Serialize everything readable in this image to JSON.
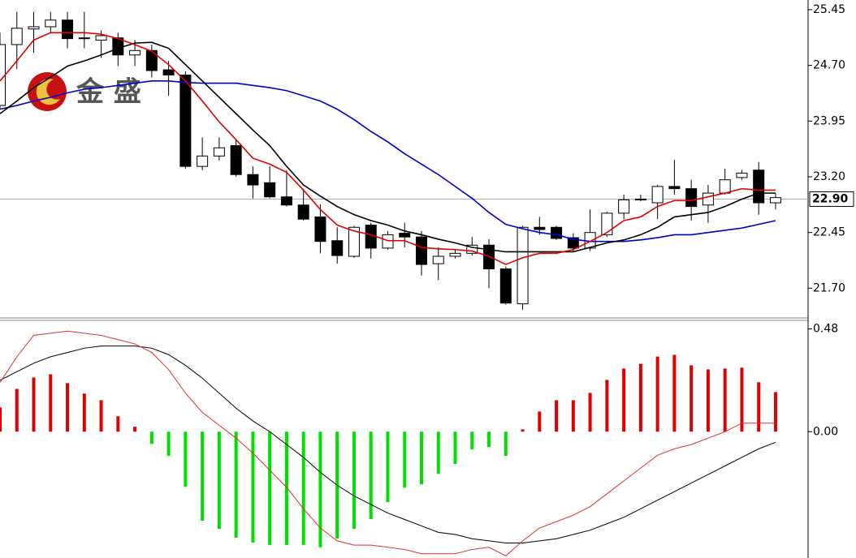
{
  "logo": "金 盛",
  "chart_data": [
    {
      "type": "candlestick",
      "ylim": [
        21.3,
        25.58
      ],
      "yticks": [
        25.45,
        {
          "value": 24.7,
          "label": "24.70"
        },
        23.95,
        {
          "value": 23.2,
          "label": "23.20"
        },
        22.45,
        {
          "value": 21.7,
          "label": "21.70"
        }
      ],
      "last_price": {
        "value": 22.9,
        "label": "22.90"
      },
      "up_color": "#ffffff",
      "down_color": "#000000",
      "open": [
        24.16,
        24.98,
        25.19,
        25.22,
        25.31,
        25.06,
        25.04,
        25.07,
        24.84,
        24.9,
        24.64,
        24.57,
        23.34,
        23.48,
        23.62,
        23.23,
        23.12,
        22.93,
        22.82,
        22.66,
        22.34,
        22.13,
        22.55,
        22.24,
        22.44,
        22.39,
        22.03,
        22.13,
        22.17,
        22.28,
        21.96,
        21.49,
        22.52,
        22.52,
        22.38,
        22.24,
        22.42,
        22.71,
        22.89,
        22.85,
        23.07,
        23.04,
        22.82,
        22.98,
        23.19,
        23.29,
        22.85
      ],
      "high": [
        25.14,
        25.42,
        25.42,
        25.42,
        25.42,
        25.42,
        25.17,
        25.14,
        25.04,
        24.98,
        24.76,
        24.62,
        23.73,
        23.73,
        23.7,
        23.34,
        23.34,
        23.29,
        23.04,
        22.83,
        22.52,
        22.54,
        22.58,
        22.47,
        22.58,
        22.47,
        22.25,
        22.21,
        22.39,
        22.36,
        21.99,
        22.54,
        22.66,
        22.54,
        22.44,
        22.76,
        22.73,
        22.96,
        22.96,
        23.09,
        23.43,
        23.16,
        23.09,
        23.31,
        23.29,
        23.4,
        22.98
      ],
      "low": [
        24.11,
        24.65,
        24.87,
        25.14,
        24.93,
        24.93,
        24.8,
        24.69,
        24.69,
        24.54,
        24.29,
        23.31,
        23.29,
        23.42,
        23.2,
        22.91,
        22.91,
        22.8,
        22.61,
        22.17,
        22.03,
        22.11,
        22.1,
        22.22,
        22.25,
        21.87,
        21.81,
        22.1,
        22.14,
        21.7,
        21.48,
        21.41,
        22.42,
        22.35,
        22.2,
        22.2,
        22.39,
        22.63,
        22.87,
        22.63,
        22.96,
        22.61,
        22.58,
        22.96,
        23.16,
        22.69,
        22.76
      ],
      "close": [
        24.98,
        25.2,
        25.22,
        25.31,
        25.06,
        25.07,
        25.1,
        24.84,
        24.9,
        24.63,
        24.57,
        23.34,
        23.48,
        23.59,
        23.23,
        23.09,
        22.93,
        22.82,
        22.63,
        22.33,
        22.14,
        22.52,
        22.24,
        22.42,
        22.39,
        22.02,
        22.13,
        22.17,
        22.28,
        21.96,
        21.5,
        22.52,
        22.49,
        22.37,
        22.24,
        22.45,
        22.71,
        22.89,
        22.9,
        23.07,
        23.04,
        22.8,
        22.98,
        23.16,
        23.25,
        22.85,
        22.92
      ],
      "series": [
        {
          "color": "#0000c8",
          "values": [
            24.11,
            24.16,
            24.22,
            24.27,
            24.33,
            24.38,
            24.4,
            24.43,
            24.46,
            24.49,
            24.49,
            24.47,
            24.46,
            24.46,
            24.46,
            24.43,
            24.4,
            24.36,
            24.29,
            24.22,
            24.11,
            23.97,
            23.81,
            23.67,
            23.51,
            23.37,
            23.23,
            23.07,
            22.91,
            22.72,
            22.56,
            22.5,
            22.45,
            22.42,
            22.36,
            22.33,
            22.33,
            22.33,
            22.35,
            22.38,
            22.42,
            22.42,
            22.45,
            22.48,
            22.51,
            22.56,
            22.61
          ]
        },
        {
          "color": "#000000",
          "values": [
            24.05,
            24.22,
            24.4,
            24.54,
            24.69,
            24.76,
            24.84,
            24.93,
            25.0,
            25.01,
            24.93,
            24.71,
            24.49,
            24.27,
            24.05,
            23.83,
            23.62,
            23.34,
            23.09,
            22.94,
            22.8,
            22.69,
            22.61,
            22.55,
            22.47,
            22.42,
            22.36,
            22.31,
            22.25,
            22.22,
            22.19,
            22.19,
            22.19,
            22.19,
            22.19,
            22.25,
            22.31,
            22.35,
            22.42,
            22.52,
            22.66,
            22.69,
            22.72,
            22.8,
            22.9,
            22.98,
            22.98
          ]
        },
        {
          "color": "#e00000",
          "values": [
            24.49,
            24.76,
            25.04,
            25.14,
            25.14,
            25.14,
            25.12,
            25.06,
            24.98,
            24.89,
            24.71,
            24.49,
            24.22,
            23.94,
            23.7,
            23.45,
            23.37,
            23.26,
            23.02,
            22.76,
            22.55,
            22.47,
            22.42,
            22.34,
            22.34,
            22.25,
            22.23,
            22.22,
            22.2,
            22.13,
            22.02,
            22.11,
            22.17,
            22.17,
            22.22,
            22.33,
            22.45,
            22.61,
            22.66,
            22.8,
            22.88,
            22.88,
            22.93,
            22.98,
            23.04,
            23.02,
            23.02
          ]
        }
      ]
    },
    {
      "type": "macd",
      "ylim": [
        -0.59,
        0.52
      ],
      "yticks": [
        0.48,
        {
          "value": 0,
          "label": "0.00"
        }
      ],
      "up_color": "#e00000",
      "down_color": "#00e000",
      "values": [
        0.113,
        0.2,
        0.253,
        0.268,
        0.227,
        0.178,
        0.147,
        0.072,
        0.023,
        -0.057,
        -0.113,
        -0.257,
        -0.416,
        -0.454,
        -0.495,
        -0.518,
        -0.529,
        -0.529,
        -0.529,
        -0.54,
        -0.499,
        -0.454,
        -0.408,
        -0.329,
        -0.261,
        -0.246,
        -0.197,
        -0.151,
        -0.083,
        -0.072,
        -0.113,
        0.011,
        0.094,
        0.147,
        0.147,
        0.181,
        0.242,
        0.295,
        0.317,
        0.351,
        0.359,
        0.31,
        0.291,
        0.295,
        0.299,
        0.231,
        0.185
      ],
      "series": [
        {
          "color": "#000000",
          "values": [
            0.24,
            0.28,
            0.32,
            0.35,
            0.37,
            0.39,
            0.4,
            0.4,
            0.4,
            0.39,
            0.36,
            0.31,
            0.25,
            0.18,
            0.11,
            0.05,
            0.0,
            -0.06,
            -0.12,
            -0.19,
            -0.25,
            -0.3,
            -0.34,
            -0.38,
            -0.41,
            -0.44,
            -0.47,
            -0.48,
            -0.5,
            -0.51,
            -0.52,
            -0.52,
            -0.51,
            -0.5,
            -0.48,
            -0.46,
            -0.43,
            -0.4,
            -0.36,
            -0.32,
            -0.28,
            -0.24,
            -0.2,
            -0.16,
            -0.12,
            -0.08,
            -0.05
          ]
        },
        {
          "color": "#e03030",
          "values": [
            0.23,
            0.35,
            0.45,
            0.46,
            0.47,
            0.46,
            0.45,
            0.43,
            0.41,
            0.37,
            0.29,
            0.18,
            0.09,
            0.03,
            -0.03,
            -0.1,
            -0.18,
            -0.26,
            -0.36,
            -0.45,
            -0.51,
            -0.53,
            -0.53,
            -0.54,
            -0.55,
            -0.57,
            -0.57,
            -0.57,
            -0.55,
            -0.54,
            -0.58,
            -0.51,
            -0.45,
            -0.42,
            -0.39,
            -0.35,
            -0.29,
            -0.23,
            -0.17,
            -0.11,
            -0.08,
            -0.06,
            -0.03,
            0.0,
            0.04,
            0.04,
            0.04
          ]
        }
      ]
    }
  ]
}
